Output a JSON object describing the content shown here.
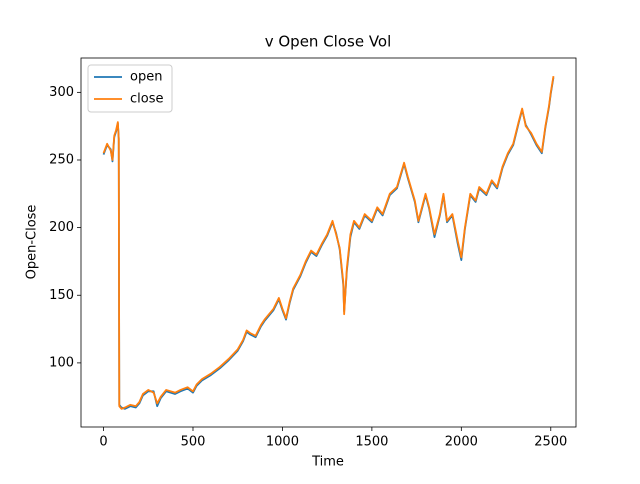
{
  "chart_data": {
    "type": "line",
    "title": "v Open Close Vol",
    "x_label": "Time",
    "y_label": "Open-Close",
    "x": [
      0,
      20,
      40,
      50,
      60,
      70,
      80,
      85,
      88,
      100,
      120,
      150,
      180,
      200,
      220,
      250,
      280,
      300,
      320,
      350,
      400,
      430,
      470,
      500,
      520,
      550,
      600,
      650,
      700,
      750,
      780,
      800,
      820,
      850,
      880,
      900,
      950,
      980,
      1000,
      1020,
      1040,
      1060,
      1100,
      1130,
      1160,
      1190,
      1220,
      1250,
      1280,
      1300,
      1320,
      1340,
      1345,
      1360,
      1380,
      1400,
      1430,
      1460,
      1500,
      1530,
      1560,
      1600,
      1640,
      1680,
      1700,
      1740,
      1760,
      1800,
      1820,
      1850,
      1880,
      1900,
      1920,
      1950,
      1980,
      2000,
      2020,
      2050,
      2080,
      2100,
      2140,
      2170,
      2200,
      2230,
      2260,
      2290,
      2320,
      2340,
      2360,
      2390,
      2420,
      2450,
      2470,
      2490,
      2500,
      2515
    ],
    "series": [
      {
        "name": "open",
        "color": "#1f77b4",
        "values": [
          254,
          261,
          258,
          249,
          267,
          271,
          277,
          266,
          69,
          67,
          66,
          68,
          67,
          70,
          76,
          79,
          79,
          68,
          74,
          79,
          77,
          79,
          81,
          78,
          83,
          87,
          91,
          96,
          102,
          109,
          116,
          123,
          121,
          119,
          127,
          131,
          139,
          147,
          139,
          132,
          144,
          154,
          164,
          174,
          182,
          179,
          187,
          194,
          204,
          196,
          184,
          158,
          138,
          168,
          193,
          204,
          199,
          209,
          204,
          214,
          209,
          224,
          229,
          247,
          237,
          219,
          204,
          224,
          214,
          193,
          209,
          224,
          204,
          209,
          188,
          176,
          199,
          224,
          219,
          229,
          224,
          234,
          229,
          244,
          254,
          261,
          277,
          287,
          276,
          269,
          261,
          255,
          274,
          289,
          299,
          311
        ]
      },
      {
        "name": "close",
        "color": "#ff7f0e",
        "values": [
          255,
          262,
          257,
          250,
          268,
          272,
          278,
          265,
          68,
          66,
          67,
          69,
          68,
          71,
          77,
          80,
          78,
          70,
          75,
          80,
          78,
          80,
          82,
          79,
          84,
          88,
          92,
          97,
          103,
          110,
          117,
          124,
          122,
          120,
          128,
          132,
          140,
          148,
          140,
          133,
          145,
          155,
          165,
          175,
          183,
          180,
          188,
          195,
          205,
          195,
          185,
          160,
          136,
          170,
          195,
          205,
          200,
          210,
          205,
          215,
          210,
          225,
          230,
          248,
          238,
          220,
          205,
          225,
          215,
          195,
          210,
          225,
          205,
          210,
          190,
          178,
          200,
          225,
          220,
          230,
          225,
          235,
          230,
          245,
          255,
          262,
          278,
          288,
          275,
          270,
          262,
          256,
          275,
          290,
          300,
          312
        ]
      }
    ],
    "xlim": [
      -126,
      2641
    ],
    "xticks": [
      0,
      500,
      1000,
      1500,
      2000,
      2500
    ],
    "ylim": [
      52.6,
      325.4
    ],
    "yticks": [
      100,
      150,
      200,
      250,
      300
    ],
    "legend": "upper left"
  }
}
